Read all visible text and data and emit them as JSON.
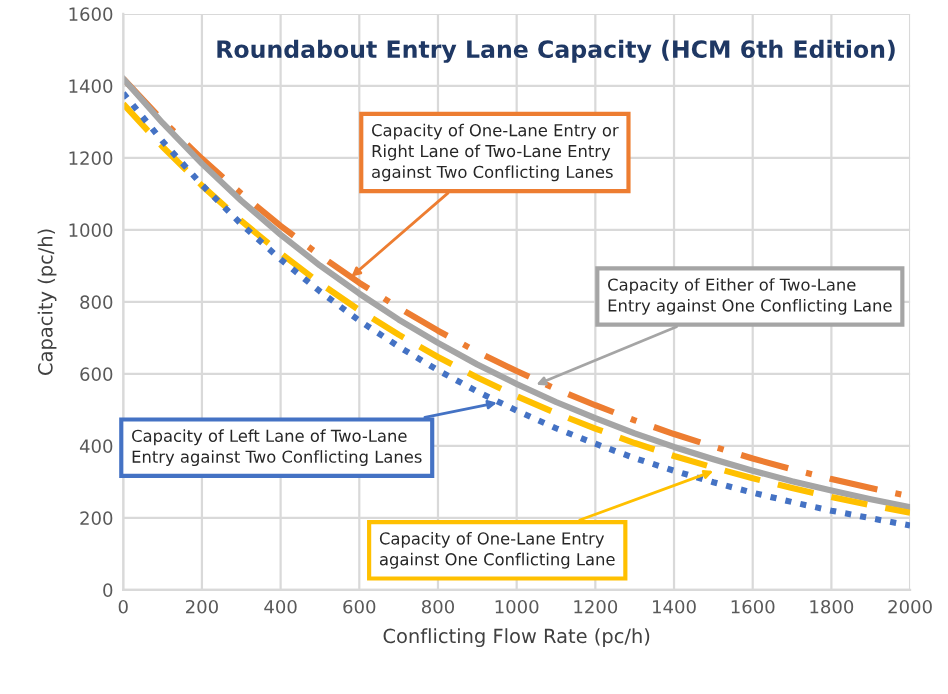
{
  "chart_data": {
    "type": "line",
    "title": "Roundabout Entry Lane Capacity (HCM 6th Edition)",
    "xlabel": "Conflicting Flow Rate (pc/h)",
    "ylabel": "Capacity (pc/h)",
    "x": [
      0,
      100,
      200,
      300,
      400,
      500,
      600,
      700,
      800,
      900,
      1000,
      1100,
      1200,
      1300,
      1400,
      1500,
      1600,
      1700,
      1800,
      1900,
      2000
    ],
    "series": [
      {
        "color": "#ed7d31",
        "line_style": "dashdot",
        "values": [
          1420,
          1304,
          1198,
          1101,
          1011,
          929,
          853,
          784,
          720,
          661,
          608,
          558,
          513,
          471,
          433,
          398,
          365,
          335,
          308,
          283,
          260
        ]
      },
      {
        "color": "#a5a5a5",
        "line_style": "solid",
        "values": [
          1420,
          1297,
          1184,
          1081,
          987,
          901,
          823,
          751,
          686,
          626,
          572,
          522,
          477,
          435,
          397,
          363,
          331,
          302,
          276,
          252,
          230
        ]
      },
      {
        "color": "#ffc000",
        "line_style": "dashed",
        "values": [
          1350,
          1231,
          1123,
          1025,
          935,
          852,
          777,
          709,
          647,
          590,
          538,
          491,
          448,
          408,
          372,
          340,
          310,
          283,
          258,
          235,
          214
        ]
      },
      {
        "color": "#4472c4",
        "line_style": "dotted",
        "values": [
          1380,
          1246,
          1125,
          1016,
          918,
          829,
          748,
          676,
          610,
          551,
          498,
          449,
          406,
          366,
          331,
          299,
          270,
          244,
          220,
          199,
          179
        ]
      }
    ],
    "annotations": [
      {
        "text": "Capacity of One-Lane Entry or\nRight Lane of Two-Lane Entry\nagainst Two Conflicting Lanes",
        "x": 580,
        "y": 870
      },
      {
        "text": "Capacity of Either of Two-Lane\nEntry against One Conflicting Lane",
        "x": 1050,
        "y": 570
      },
      {
        "text": "Capacity of Left Lane of Two-Lane\nEntry against Two Conflicting Lanes",
        "x": 950,
        "y": 520
      },
      {
        "text": "Capacity of One-Lane Entry\nagainst One Conflicting Lane",
        "x": 1500,
        "y": 330
      }
    ],
    "xlim": [
      0,
      2000
    ],
    "ylim": [
      0,
      1600
    ],
    "xticks": [
      0,
      200,
      400,
      600,
      800,
      1000,
      1200,
      1400,
      1600,
      1800,
      2000
    ],
    "yticks": [
      0,
      200,
      400,
      600,
      800,
      1000,
      1200,
      1400,
      1600
    ],
    "grid": true,
    "marker": "none"
  }
}
